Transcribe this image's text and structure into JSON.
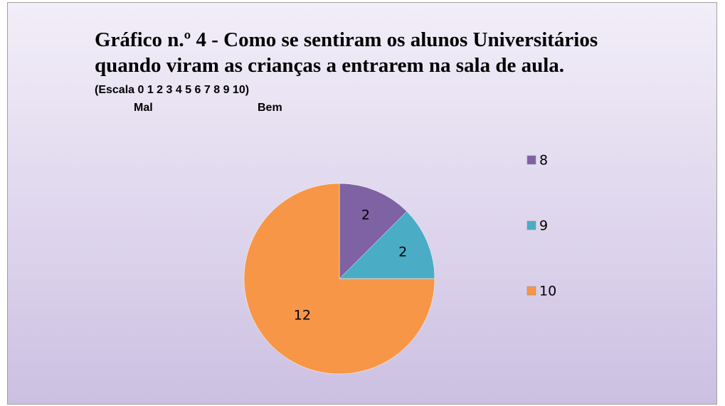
{
  "chart_data": {
    "type": "pie",
    "title": "Gráfico n.º 4 - Como se sentiram os alunos Universitários quando viram as crianças a entrarem na sala de aula.",
    "subtitle": "(Escala 0 1 2 3 4 5 6 7 8 9 10)",
    "annotations": [
      "Mal",
      "Bem"
    ],
    "categories": [
      "8",
      "9",
      "10"
    ],
    "values": [
      2,
      2,
      12
    ],
    "colors": [
      "#7f62a3",
      "#4bacc6",
      "#f79646"
    ],
    "legend": "right"
  }
}
